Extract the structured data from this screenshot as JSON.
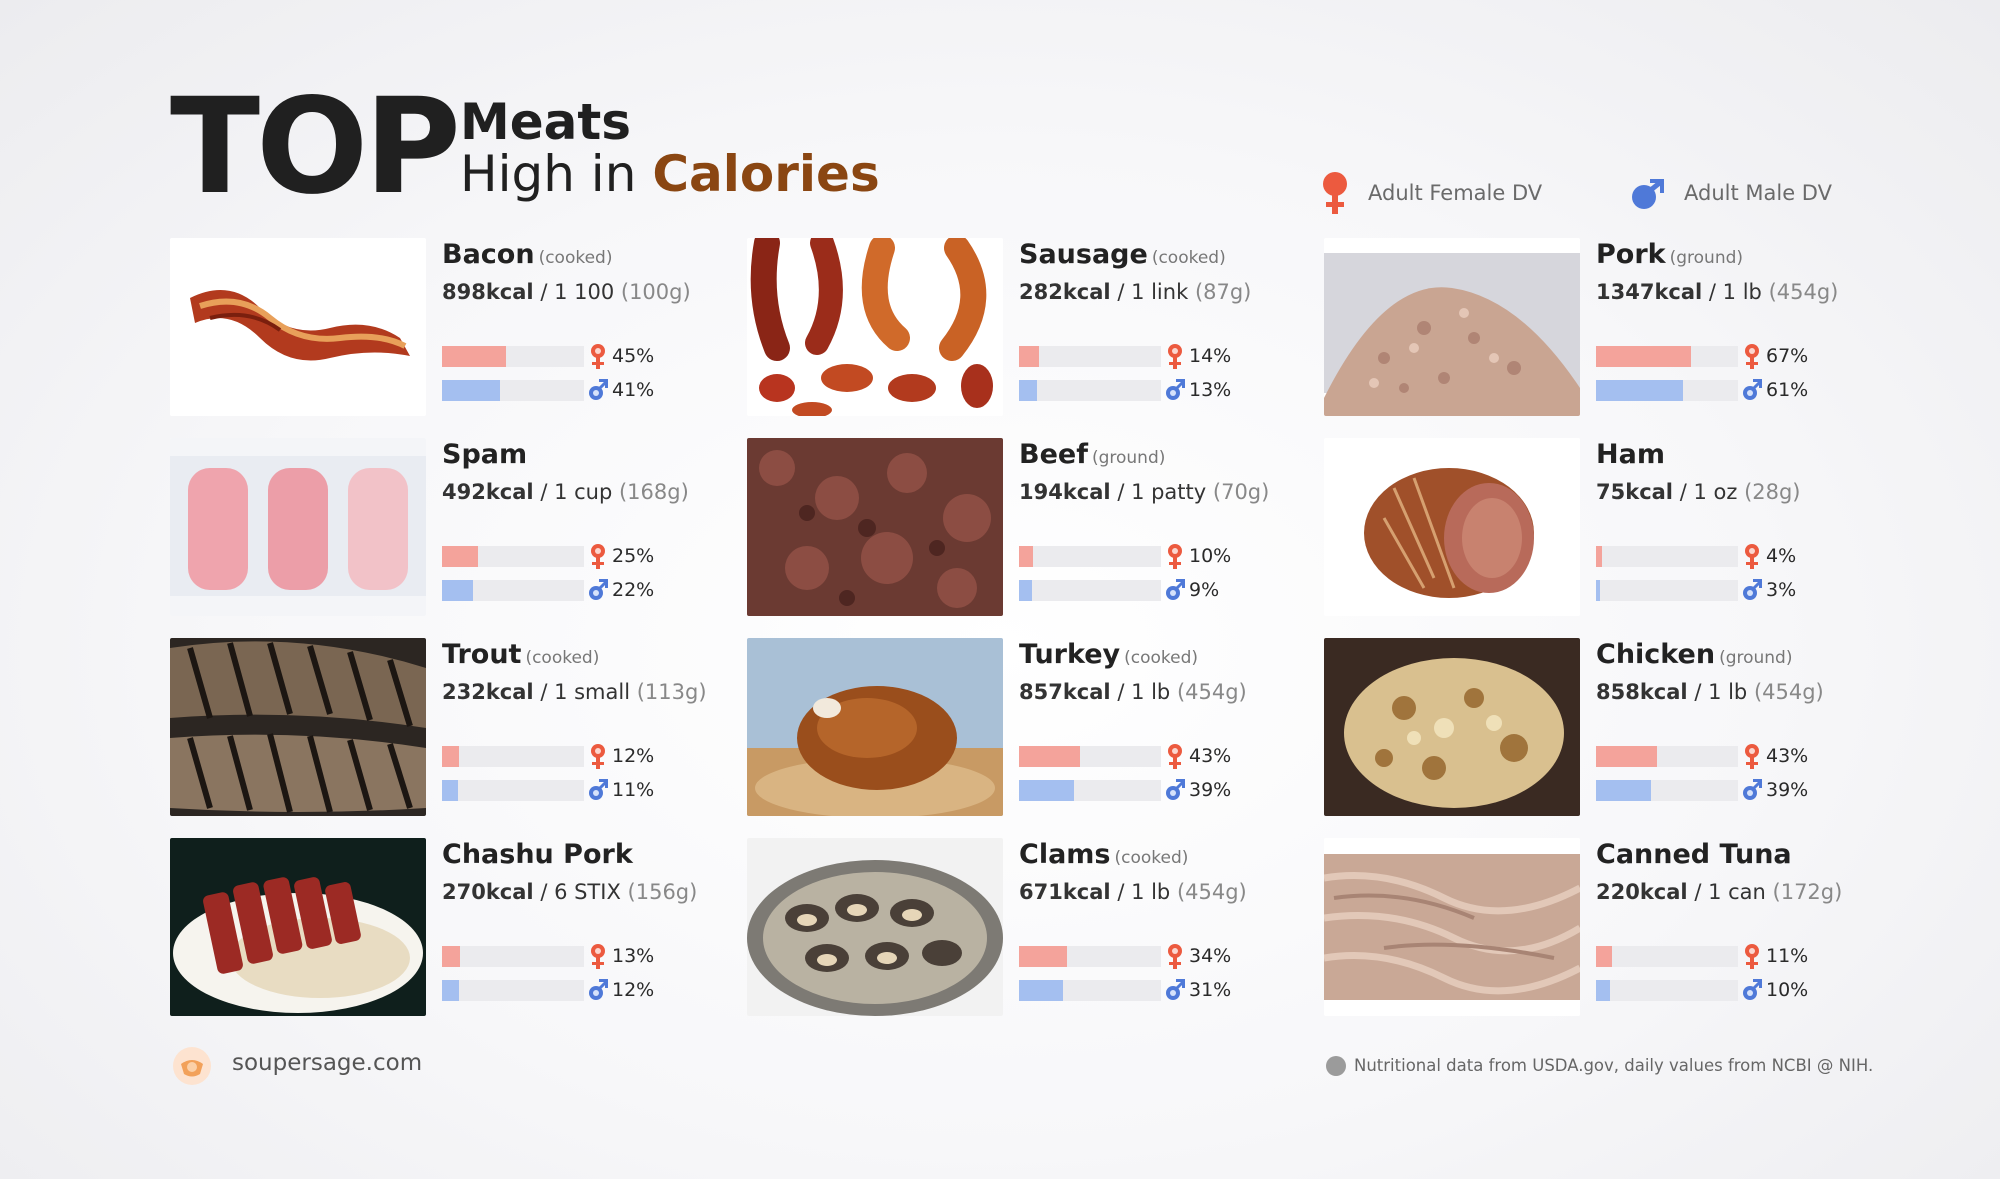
{
  "header": {
    "top_word": "TOP",
    "title_line1": "Meats",
    "title_line2_prefix": "High in",
    "title_line2_accent": "Calories"
  },
  "legend": {
    "female_label": "Adult Female DV",
    "male_label": "Adult Male DV"
  },
  "colors": {
    "female": "#ec5a3f",
    "male": "#4f79d8",
    "female_bar": "#f4a39b",
    "male_bar": "#a4bff0",
    "accent": "#8a4612"
  },
  "items": [
    {
      "name": "Bacon",
      "prep": "(cooked)",
      "kcal": "898kcal",
      "amount": "/ 1 100",
      "grams": "(100g)",
      "female_pct": "45%",
      "male_pct": "41%",
      "female_value": 45,
      "male_value": 41,
      "image": "bacon"
    },
    {
      "name": "Sausage",
      "prep": "(cooked)",
      "kcal": "282kcal",
      "amount": "/ 1 link",
      "grams": "(87g)",
      "female_pct": "14%",
      "male_pct": "13%",
      "female_value": 14,
      "male_value": 13,
      "image": "sausage"
    },
    {
      "name": "Pork",
      "prep": "(ground)",
      "kcal": "1347kcal",
      "amount": "/ 1 lb",
      "grams": "(454g)",
      "female_pct": "67%",
      "male_pct": "61%",
      "female_value": 67,
      "male_value": 61,
      "image": "ground-pork"
    },
    {
      "name": "Spam",
      "prep": "",
      "kcal": "492kcal",
      "amount": "/ 1 cup",
      "grams": "(168g)",
      "female_pct": "25%",
      "male_pct": "22%",
      "female_value": 25,
      "male_value": 22,
      "image": "spam"
    },
    {
      "name": "Beef",
      "prep": "(ground)",
      "kcal": "194kcal",
      "amount": "/ 1 patty",
      "grams": "(70g)",
      "female_pct": "10%",
      "male_pct": "9%",
      "female_value": 10,
      "male_value": 9,
      "image": "ground-beef"
    },
    {
      "name": "Ham",
      "prep": "",
      "kcal": "75kcal",
      "amount": "/ 1 oz",
      "grams": "(28g)",
      "female_pct": "4%",
      "male_pct": "3%",
      "female_value": 4,
      "male_value": 3,
      "image": "ham"
    },
    {
      "name": "Trout",
      "prep": "(cooked)",
      "kcal": "232kcal",
      "amount": "/ 1 small",
      "grams": "(113g)",
      "female_pct": "12%",
      "male_pct": "11%",
      "female_value": 12,
      "male_value": 11,
      "image": "trout"
    },
    {
      "name": "Turkey",
      "prep": "(cooked)",
      "kcal": "857kcal",
      "amount": "/ 1 lb",
      "grams": "(454g)",
      "female_pct": "43%",
      "male_pct": "39%",
      "female_value": 43,
      "male_value": 39,
      "image": "turkey"
    },
    {
      "name": "Chicken",
      "prep": "(ground)",
      "kcal": "858kcal",
      "amount": "/ 1 lb",
      "grams": "(454g)",
      "female_pct": "43%",
      "male_pct": "39%",
      "female_value": 43,
      "male_value": 39,
      "image": "chicken"
    },
    {
      "name": "Chashu Pork",
      "prep": "",
      "kcal": "270kcal",
      "amount": "/ 6 STIX",
      "grams": "(156g)",
      "female_pct": "13%",
      "male_pct": "12%",
      "female_value": 13,
      "male_value": 12,
      "image": "chashu-pork"
    },
    {
      "name": "Clams",
      "prep": "(cooked)",
      "kcal": "671kcal",
      "amount": "/ 1 lb",
      "grams": "(454g)",
      "female_pct": "34%",
      "male_pct": "31%",
      "female_value": 34,
      "male_value": 31,
      "image": "clams"
    },
    {
      "name": "Canned Tuna",
      "prep": "",
      "kcal": "220kcal",
      "amount": "/ 1 can",
      "grams": "(172g)",
      "female_pct": "11%",
      "male_pct": "10%",
      "female_value": 11,
      "male_value": 10,
      "image": "canned-tuna"
    }
  ],
  "footer": {
    "site": "soupersage.com",
    "source": "Nutritional data from USDA.gov, daily values from NCBI @ NIH."
  }
}
